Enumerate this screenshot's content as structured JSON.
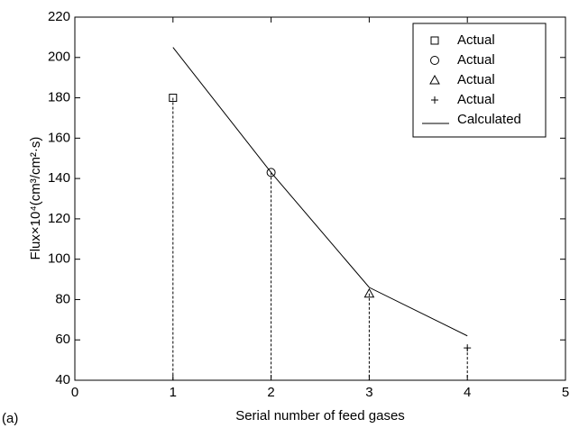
{
  "chart_data": {
    "type": "scatter",
    "xlabel": "Serial number of feed gases",
    "ylabel": "Flux×10⁴(cm³/cm²·s)",
    "annotation": "(a)",
    "xlim": [
      0,
      5
    ],
    "xticks": [
      0,
      1,
      2,
      3,
      4,
      5
    ],
    "ylim": [
      40,
      220
    ],
    "yticks": [
      40,
      60,
      80,
      100,
      120,
      140,
      160,
      180,
      200,
      220
    ],
    "legend": "upper right",
    "series": [
      {
        "name": "Actual",
        "marker": "square",
        "color": "#000000",
        "x": [
          1
        ],
        "values": [
          180
        ]
      },
      {
        "name": "Actual",
        "marker": "circle",
        "color": "#000000",
        "x": [
          2
        ],
        "values": [
          143
        ]
      },
      {
        "name": "Actual",
        "marker": "triangle",
        "color": "#000000",
        "x": [
          3
        ],
        "values": [
          83
        ]
      },
      {
        "name": "Actual",
        "marker": "plus",
        "color": "#000000",
        "x": [
          4
        ],
        "values": [
          56
        ]
      },
      {
        "name": "Calculated",
        "marker": "line",
        "color": "#000000",
        "x": [
          1,
          2,
          3,
          4
        ],
        "values": [
          205,
          143,
          86,
          62
        ]
      }
    ]
  }
}
